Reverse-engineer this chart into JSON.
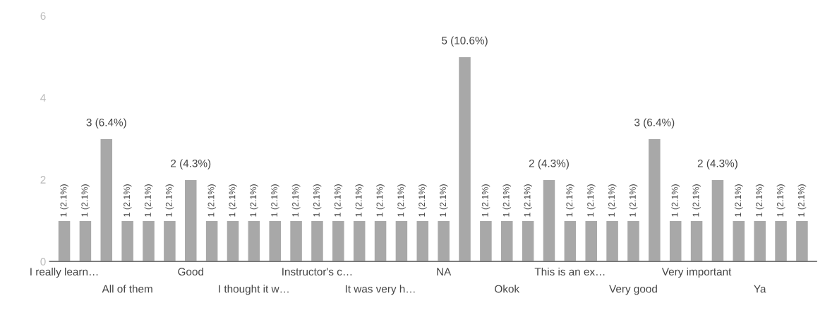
{
  "chart_data": {
    "type": "bar",
    "categories": [
      "I really learn…",
      null,
      null,
      "All of them",
      null,
      null,
      "Good",
      null,
      null,
      "I thought it w…",
      null,
      null,
      "Instructor's c…",
      null,
      null,
      "It was very h…",
      null,
      null,
      "NA",
      null,
      null,
      "Okok",
      null,
      null,
      "This is an ex…",
      null,
      null,
      "Very good",
      null,
      null,
      "Very important",
      null,
      null,
      "Ya",
      null,
      null
    ],
    "values": [
      1,
      1,
      3,
      1,
      1,
      1,
      2,
      1,
      1,
      1,
      1,
      1,
      1,
      1,
      1,
      1,
      1,
      1,
      1,
      5,
      1,
      1,
      1,
      2,
      1,
      1,
      1,
      1,
      3,
      1,
      1,
      2,
      1,
      1,
      1,
      1
    ],
    "value_labels": [
      "1 (2.1%)",
      "1 (2.1%)",
      "3 (6.4%)",
      "1 (2.1%)",
      "1 (2.1%)",
      "1 (2.1%)",
      "2 (4.3%)",
      "1 (2.1%)",
      "1 (2.1%)",
      "1 (2.1%)",
      "1 (2.1%)",
      "1 (2.1%)",
      "1 (2.1%)",
      "1 (2.1%)",
      "1 (2.1%)",
      "1 (2.1%)",
      "1 (2.1%)",
      "1 (2.1%)",
      "1 (2.1%)",
      "5 (10.6%)",
      "1 (2.1%)",
      "1 (2.1%)",
      "1 (2.1%)",
      "2 (4.3%)",
      "1 (2.1%)",
      "1 (2.1%)",
      "1 (2.1%)",
      "1 (2.1%)",
      "3 (6.4%)",
      "1 (2.1%)",
      "1 (2.1%)",
      "2 (4.3%)",
      "1 (2.1%)",
      "1 (2.1%)",
      "1 (2.1%)",
      "1 (2.1%)"
    ],
    "color": "#a8a8a8",
    "ylim": [
      0,
      6
    ],
    "yticks": [
      0,
      2,
      4,
      6
    ],
    "grid": false
  }
}
